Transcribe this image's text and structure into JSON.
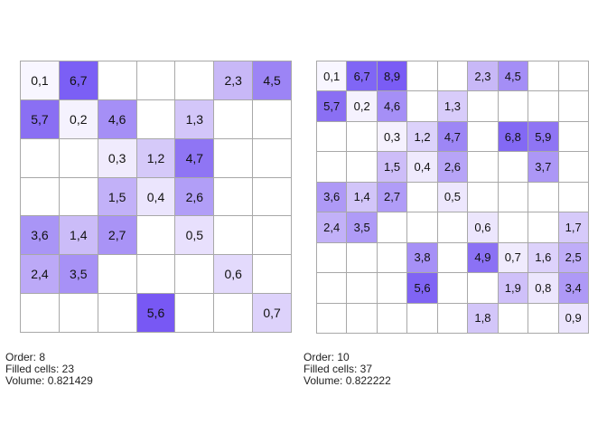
{
  "panels": [
    {
      "size": 7,
      "order_label": "Order: 8",
      "filled_label": "Filled cells: 23",
      "volume_label": "Volume: 0.821429",
      "cells": [
        {
          "r": 0,
          "c": 0,
          "label": "0,1",
          "color": "#f8f6ff"
        },
        {
          "r": 0,
          "c": 1,
          "label": "6,7",
          "color": "#7b5ff5"
        },
        {
          "r": 0,
          "c": 5,
          "label": "2,3",
          "color": "#c8b8f7"
        },
        {
          "r": 0,
          "c": 6,
          "label": "4,5",
          "color": "#9c84f5"
        },
        {
          "r": 1,
          "c": 0,
          "label": "5,7",
          "color": "#8a6ff3"
        },
        {
          "r": 1,
          "c": 1,
          "label": "0,2",
          "color": "#f5f2fe"
        },
        {
          "r": 1,
          "c": 2,
          "label": "4,6",
          "color": "#a58ff6"
        },
        {
          "r": 1,
          "c": 4,
          "label": "1,3",
          "color": "#d3c6f9"
        },
        {
          "r": 2,
          "c": 2,
          "label": "0,3",
          "color": "#f0ebfd"
        },
        {
          "r": 2,
          "c": 3,
          "label": "1,2",
          "color": "#d5c9f9"
        },
        {
          "r": 2,
          "c": 4,
          "label": "4,7",
          "color": "#8f75f4"
        },
        {
          "r": 3,
          "c": 2,
          "label": "1,5",
          "color": "#c2b1f8"
        },
        {
          "r": 3,
          "c": 3,
          "label": "0,4",
          "color": "#ebe5fd"
        },
        {
          "r": 3,
          "c": 4,
          "label": "2,6",
          "color": "#b19ef7"
        },
        {
          "r": 4,
          "c": 0,
          "label": "3,6",
          "color": "#a995f6"
        },
        {
          "r": 4,
          "c": 1,
          "label": "1,4",
          "color": "#cbbcf8"
        },
        {
          "r": 4,
          "c": 2,
          "label": "2,7",
          "color": "#a993f6"
        },
        {
          "r": 4,
          "c": 4,
          "label": "0,5",
          "color": "#e8e0fd"
        },
        {
          "r": 5,
          "c": 0,
          "label": "2,4",
          "color": "#bca9f7"
        },
        {
          "r": 5,
          "c": 1,
          "label": "3,5",
          "color": "#a791f6"
        },
        {
          "r": 5,
          "c": 5,
          "label": "0,6",
          "color": "#e3dafc"
        },
        {
          "r": 6,
          "c": 3,
          "label": "5,6",
          "color": "#7858f4"
        },
        {
          "r": 6,
          "c": 6,
          "label": "0,7",
          "color": "#ddd2fb"
        }
      ]
    },
    {
      "size": 9,
      "order_label": "Order: 10",
      "filled_label": "Filled cells: 37",
      "volume_label": "Volume: 0.822222",
      "cells": [
        {
          "r": 0,
          "c": 0,
          "label": "0,1",
          "color": "#f8f6ff"
        },
        {
          "r": 0,
          "c": 1,
          "label": "6,7",
          "color": "#8066f5"
        },
        {
          "r": 0,
          "c": 2,
          "label": "8,9",
          "color": "#7a5cf5"
        },
        {
          "r": 0,
          "c": 5,
          "label": "2,3",
          "color": "#c8b8f7"
        },
        {
          "r": 0,
          "c": 6,
          "label": "4,5",
          "color": "#a48ef6"
        },
        {
          "r": 1,
          "c": 0,
          "label": "5,7",
          "color": "#8a6ff3"
        },
        {
          "r": 1,
          "c": 1,
          "label": "0,2",
          "color": "#f5f2fe"
        },
        {
          "r": 1,
          "c": 2,
          "label": "4,6",
          "color": "#a58ff6"
        },
        {
          "r": 1,
          "c": 4,
          "label": "1,3",
          "color": "#d8ccfa"
        },
        {
          "r": 2,
          "c": 2,
          "label": "0,3",
          "color": "#f5f1fe"
        },
        {
          "r": 2,
          "c": 3,
          "label": "1,2",
          "color": "#dcd2fb"
        },
        {
          "r": 2,
          "c": 4,
          "label": "4,7",
          "color": "#9d86f5"
        },
        {
          "r": 2,
          "c": 6,
          "label": "6,8",
          "color": "#8369f4"
        },
        {
          "r": 2,
          "c": 7,
          "label": "5,9",
          "color": "#8f75f4"
        },
        {
          "r": 3,
          "c": 2,
          "label": "1,5",
          "color": "#cdbdf8"
        },
        {
          "r": 3,
          "c": 3,
          "label": "0,4",
          "color": "#efeafd"
        },
        {
          "r": 3,
          "c": 4,
          "label": "2,6",
          "color": "#b7a4f7"
        },
        {
          "r": 3,
          "c": 7,
          "label": "3,7",
          "color": "#ac97f6"
        },
        {
          "r": 4,
          "c": 0,
          "label": "3,6",
          "color": "#ae99f6"
        },
        {
          "r": 4,
          "c": 1,
          "label": "1,4",
          "color": "#d2c5f9"
        },
        {
          "r": 4,
          "c": 2,
          "label": "2,7",
          "color": "#b09cf7"
        },
        {
          "r": 4,
          "c": 4,
          "label": "0,5",
          "color": "#ede7fd"
        },
        {
          "r": 5,
          "c": 0,
          "label": "2,4",
          "color": "#c2b1f8"
        },
        {
          "r": 5,
          "c": 1,
          "label": "3,5",
          "color": "#af9bf7"
        },
        {
          "r": 5,
          "c": 5,
          "label": "0,6",
          "color": "#ece6fd"
        },
        {
          "r": 5,
          "c": 8,
          "label": "1,7",
          "color": "#d6cafa"
        },
        {
          "r": 6,
          "c": 3,
          "label": "3,8",
          "color": "#a690f6"
        },
        {
          "r": 6,
          "c": 5,
          "label": "4,9",
          "color": "#8b71f4"
        },
        {
          "r": 6,
          "c": 6,
          "label": "0,7",
          "color": "#f0ebfd"
        },
        {
          "r": 6,
          "c": 7,
          "label": "1,6",
          "color": "#ddd2fb"
        },
        {
          "r": 6,
          "c": 8,
          "label": "2,5",
          "color": "#bfadf8"
        },
        {
          "r": 7,
          "c": 3,
          "label": "5,6",
          "color": "#8064f4"
        },
        {
          "r": 7,
          "c": 6,
          "label": "1,9",
          "color": "#cfc0f9"
        },
        {
          "r": 7,
          "c": 7,
          "label": "0,8",
          "color": "#ece6fd"
        },
        {
          "r": 7,
          "c": 8,
          "label": "3,4",
          "color": "#ae99f6"
        },
        {
          "r": 8,
          "c": 5,
          "label": "1,8",
          "color": "#d3c6f9"
        },
        {
          "r": 8,
          "c": 8,
          "label": "0,9",
          "color": "#ebe4fd"
        }
      ]
    }
  ]
}
